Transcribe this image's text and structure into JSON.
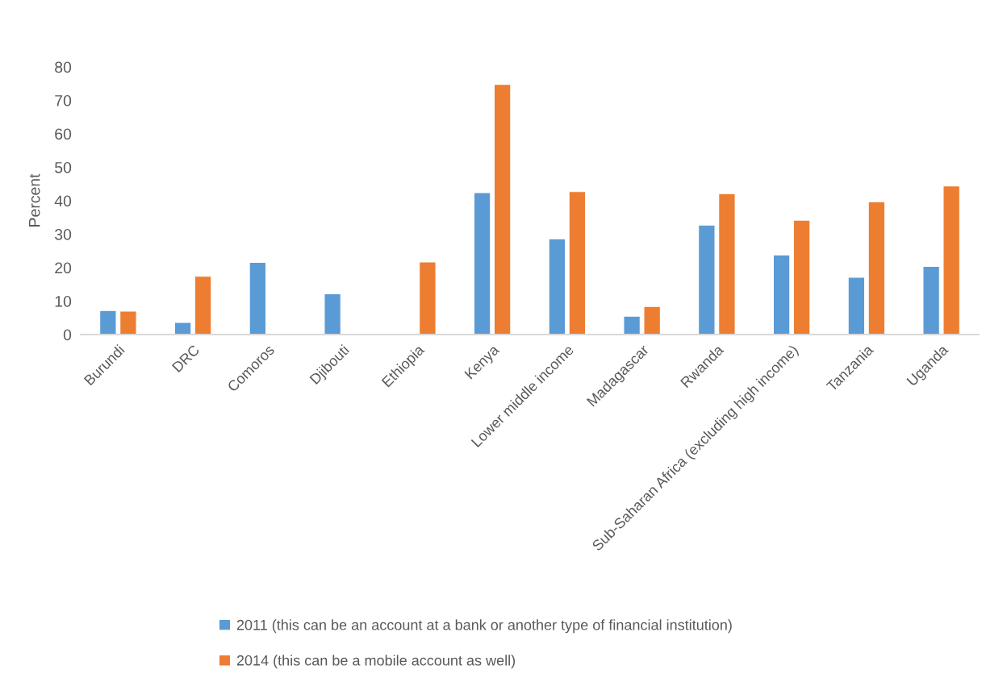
{
  "chart_data": {
    "type": "bar",
    "ylabel": "Percent",
    "categories": [
      "Burundi",
      "DRC",
      "Comoros",
      "Djibouti",
      "Ethiopia",
      "Kenya",
      "Lower middle income",
      "Madagascar",
      "Rwanda",
      "Sub-Saharan Africa (excluding high income)",
      "Tanzania",
      "Uganda"
    ],
    "series": [
      {
        "name": "2011 (this can be an account at a bank or another type of financial institution)",
        "color": "#5b9bd5",
        "values": [
          7.2,
          3.6,
          21.6,
          12.2,
          null,
          42.4,
          28.6,
          5.5,
          32.7,
          23.8,
          17.1,
          20.4
        ]
      },
      {
        "name": "2014 (this can be a mobile account as well)",
        "color": "#ed7d31",
        "values": [
          7.0,
          17.4,
          null,
          null,
          21.7,
          74.8,
          42.7,
          8.4,
          42.1,
          34.2,
          39.7,
          44.4
        ]
      }
    ],
    "ylim": [
      0,
      80
    ],
    "yticks": [
      0,
      10,
      20,
      30,
      40,
      50,
      60,
      70,
      80
    ],
    "legend": "bottom"
  }
}
